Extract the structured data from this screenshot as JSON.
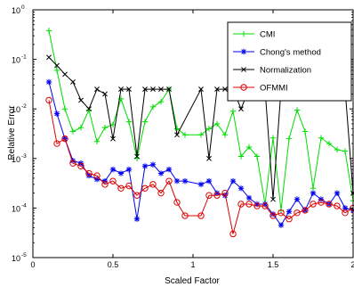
{
  "chart_data": {
    "type": "line",
    "title": "",
    "xlabel": "Scaled Factor",
    "ylabel": "Relative Error",
    "xlim": [
      0,
      2
    ],
    "ylim": [
      1e-05,
      1
    ],
    "yscale": "log",
    "grid": false,
    "legend_position": "top-right",
    "x_ticks": [
      {
        "value": 0,
        "label": "0"
      },
      {
        "value": 0.5,
        "label": "0.5"
      },
      {
        "value": 1,
        "label": "1"
      },
      {
        "value": 1.5,
        "label": "1.5"
      },
      {
        "value": 2,
        "label": "2"
      }
    ],
    "y_ticks": [
      {
        "value": 1e-05,
        "base": "10",
        "exp": "-5"
      },
      {
        "value": 0.0001,
        "base": "10",
        "exp": "-4"
      },
      {
        "value": 0.001,
        "base": "10",
        "exp": "-3"
      },
      {
        "value": 0.01,
        "base": "10",
        "exp": "-2"
      },
      {
        "value": 0.1,
        "base": "10",
        "exp": "-1"
      },
      {
        "value": 1,
        "base": "10",
        "exp": "0"
      }
    ],
    "series": [
      {
        "name": "CMI",
        "color": "#00dd00",
        "marker": "plus",
        "x": [
          0.1,
          0.15,
          0.2,
          0.25,
          0.3,
          0.35,
          0.4,
          0.45,
          0.5,
          0.55,
          0.6,
          0.65,
          0.7,
          0.75,
          0.8,
          0.85,
          0.9,
          0.95,
          1.05,
          1.1,
          1.15,
          1.2,
          1.25,
          1.3,
          1.35,
          1.4,
          1.45,
          1.5,
          1.55,
          1.6,
          1.65,
          1.7,
          1.75,
          1.8,
          1.85,
          1.9,
          1.95,
          2.0
        ],
        "y": [
          0.38,
          0.06,
          0.01,
          0.0035,
          0.0042,
          0.0095,
          0.0022,
          0.0042,
          0.0048,
          0.016,
          0.0055,
          0.001,
          0.0055,
          0.011,
          0.014,
          0.025,
          0.004,
          0.003,
          0.003,
          0.004,
          0.005,
          0.003,
          0.009,
          0.0011,
          0.0017,
          0.0011,
          0.00012,
          0.0026,
          9e-05,
          0.0025,
          0.0095,
          0.0035,
          0.00025,
          0.0026,
          0.002,
          0.0015,
          0.0014,
          0.00014
        ]
      },
      {
        "name": "Chong's method",
        "color": "#0000ee",
        "marker": "star",
        "x": [
          0.1,
          0.15,
          0.2,
          0.25,
          0.3,
          0.35,
          0.4,
          0.45,
          0.5,
          0.55,
          0.6,
          0.65,
          0.7,
          0.75,
          0.8,
          0.85,
          0.9,
          0.95,
          1.05,
          1.1,
          1.15,
          1.2,
          1.25,
          1.3,
          1.35,
          1.4,
          1.45,
          1.5,
          1.55,
          1.6,
          1.65,
          1.7,
          1.75,
          1.8,
          1.85,
          1.9,
          1.95,
          2.0
        ],
        "y": [
          0.035,
          0.008,
          0.0025,
          0.0009,
          0.0008,
          0.00045,
          0.00038,
          0.00035,
          0.0006,
          0.0005,
          0.0006,
          6e-05,
          0.0007,
          0.00075,
          0.0005,
          0.0006,
          0.00035,
          0.00035,
          0.0003,
          0.00035,
          0.0002,
          0.00018,
          0.00035,
          0.00025,
          0.00016,
          0.00012,
          0.00012,
          7.5e-05,
          4.5e-05,
          8.5e-05,
          0.00015,
          9e-05,
          0.0002,
          0.00015,
          0.00012,
          0.0002,
          0.0001,
          9e-05
        ]
      },
      {
        "name": "Normalization",
        "color": "#000000",
        "marker": "x",
        "x": [
          0.1,
          0.15,
          0.2,
          0.25,
          0.3,
          0.35,
          0.4,
          0.45,
          0.5,
          0.55,
          0.6,
          0.65,
          0.7,
          0.75,
          0.8,
          0.85,
          0.9,
          1.05,
          1.1,
          1.15,
          1.2,
          1.25,
          1.3,
          1.35,
          1.4,
          1.45,
          1.5,
          1.55,
          1.6,
          1.65,
          1.7,
          1.75,
          1.8,
          1.85,
          1.9,
          1.95,
          2.0
        ],
        "y": [
          0.11,
          0.075,
          0.05,
          0.035,
          0.015,
          0.01,
          0.025,
          0.02,
          0.0025,
          0.025,
          0.025,
          0.0011,
          0.025,
          0.025,
          0.025,
          0.025,
          0.003,
          0.025,
          0.001,
          0.025,
          0.025,
          0.025,
          0.01,
          0.025,
          0.025,
          0.025,
          0.00015,
          0.025,
          0.025,
          0.025,
          0.025,
          0.025,
          0.025,
          0.025,
          0.025,
          0.025,
          0.0002
        ]
      },
      {
        "name": "OFMMI",
        "color": "#dd0000",
        "marker": "circle",
        "x": [
          0.1,
          0.15,
          0.2,
          0.25,
          0.3,
          0.35,
          0.4,
          0.45,
          0.5,
          0.55,
          0.6,
          0.65,
          0.7,
          0.75,
          0.8,
          0.85,
          0.9,
          0.95,
          1.05,
          1.1,
          1.15,
          1.2,
          1.25,
          1.3,
          1.35,
          1.4,
          1.45,
          1.5,
          1.55,
          1.6,
          1.65,
          1.7,
          1.75,
          1.8,
          1.85,
          1.9,
          1.95,
          2.0
        ],
        "y": [
          0.015,
          0.002,
          0.0025,
          0.0008,
          0.0007,
          0.0005,
          0.00045,
          0.0003,
          0.00035,
          0.00025,
          0.00028,
          0.00018,
          0.00025,
          0.0003,
          0.0002,
          0.00035,
          0.00013,
          7e-05,
          7e-05,
          0.00018,
          0.00018,
          0.0002,
          3e-05,
          0.00012,
          0.00012,
          0.00011,
          0.00011,
          7e-05,
          8e-05,
          6e-05,
          8e-05,
          9e-05,
          0.00012,
          0.00013,
          0.00012,
          0.00011,
          8e-05,
          0.0001
        ]
      }
    ]
  }
}
